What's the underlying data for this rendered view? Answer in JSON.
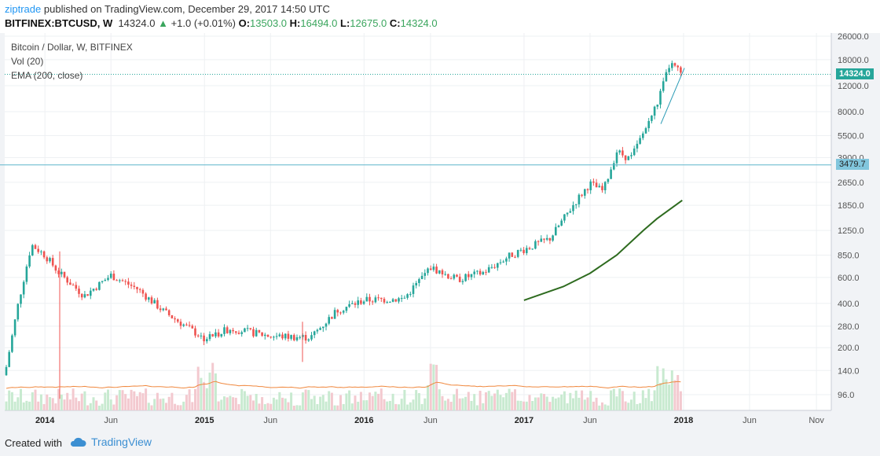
{
  "header": {
    "author": "ziptrade",
    "published_text": "published on TradingView.com, December 29, 2017 14:50 UTC",
    "symbol": "BITFINEX:BTCUSD, W",
    "last": "14324.0",
    "change": "+1.0 (+0.01%)",
    "open_label": "O:",
    "open": "13503.0",
    "high_label": "H:",
    "high": "16494.0",
    "low_label": "L:",
    "low": "12675.0",
    "close_label": "C:",
    "close": "14324.0"
  },
  "legend": {
    "title": "Bitcoin / Dollar, W, BITFINEX",
    "vol": "Vol (20)",
    "ema": "EMA (200, close)"
  },
  "price_tags": {
    "last": "14324.0",
    "level": "3479.7"
  },
  "footer": {
    "created_with": "Created with",
    "brand": "TradingView"
  },
  "colors": {
    "up": "#26a69a",
    "down": "#ef5350",
    "ema": "#2e6b1f",
    "vol_ma": "#f0883e",
    "last_tag": "#26a69a",
    "level_tag": "#81c6dd"
  },
  "chart_data": {
    "type": "candlestick",
    "title": "Bitcoin / Dollar, W, BITFINEX",
    "y_scale": "log",
    "y_ticks": [
      26000.0,
      18000.0,
      12000.0,
      8000.0,
      5500.0,
      3900.0,
      2650.0,
      1850.0,
      1250.0,
      850.0,
      600.0,
      400.0,
      280.0,
      200.0,
      140.0,
      96.0
    ],
    "y_tick_labels": [
      "26000.0",
      "18000.0",
      "12000.0",
      "8000.0",
      "5500.0",
      "3900.0",
      "2650.0",
      "1850.0",
      "1250.0",
      "850.0",
      "600.0",
      "400.0",
      "280.0",
      "200.0",
      "140.0",
      "96.0"
    ],
    "x_ticks": [
      "2014",
      "Jun",
      "2015",
      "Jun",
      "2016",
      "Jun",
      "2017",
      "Jun",
      "2018",
      "Jun",
      "Nov"
    ],
    "price_path": [
      {
        "t": "2013-10",
        "price": 130
      },
      {
        "t": "2013-11",
        "price": 400
      },
      {
        "t": "2013-12",
        "price": 1000
      },
      {
        "t": "2014-01",
        "price": 850
      },
      {
        "t": "2014-02",
        "price": 650
      },
      {
        "t": "2014-04",
        "price": 450
      },
      {
        "t": "2014-06",
        "price": 620
      },
      {
        "t": "2014-08",
        "price": 500
      },
      {
        "t": "2014-10",
        "price": 350
      },
      {
        "t": "2015-01",
        "price": 230
      },
      {
        "t": "2015-03",
        "price": 270
      },
      {
        "t": "2015-06",
        "price": 240
      },
      {
        "t": "2015-09",
        "price": 235
      },
      {
        "t": "2015-11",
        "price": 360
      },
      {
        "t": "2016-01",
        "price": 420
      },
      {
        "t": "2016-04",
        "price": 430
      },
      {
        "t": "2016-06",
        "price": 700
      },
      {
        "t": "2016-08",
        "price": 580
      },
      {
        "t": "2016-10",
        "price": 650
      },
      {
        "t": "2016-12",
        "price": 850
      },
      {
        "t": "2017-03",
        "price": 1100
      },
      {
        "t": "2017-05",
        "price": 2000
      },
      {
        "t": "2017-06",
        "price": 2600
      },
      {
        "t": "2017-07",
        "price": 2300
      },
      {
        "t": "2017-08",
        "price": 4300
      },
      {
        "t": "2017-09",
        "price": 3800
      },
      {
        "t": "2017-10",
        "price": 5700
      },
      {
        "t": "2017-11",
        "price": 9000
      },
      {
        "t": "2017-12",
        "price": 17000
      },
      {
        "t": "2017-12-29",
        "price": 14324
      }
    ],
    "ema200": [
      {
        "t": "2017-01",
        "price": 420
      },
      {
        "t": "2017-04",
        "price": 520
      },
      {
        "t": "2017-06",
        "price": 640
      },
      {
        "t": "2017-08",
        "price": 850
      },
      {
        "t": "2017-10",
        "price": 1250
      },
      {
        "t": "2017-11",
        "price": 1500
      },
      {
        "t": "2017-12-29",
        "price": 2000
      }
    ],
    "horizontal_levels": [
      14324.0,
      3479.7
    ],
    "series": [
      {
        "name": "BTCUSD weekly candles"
      },
      {
        "name": "Vol (20)"
      },
      {
        "name": "EMA (200, close)"
      }
    ]
  }
}
